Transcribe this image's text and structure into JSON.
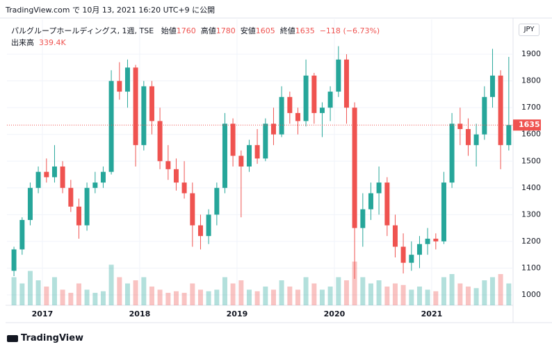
{
  "top_caption": "TradingView.com で 10月 13, 2021 16:20 UTC+9 に公開",
  "footer": "TradingView",
  "currency": "JPY",
  "chart_data": {
    "type": "candlestick",
    "title": "パルグループホールディングス, 1週, TSE",
    "open_label": "始値",
    "open_value": 1760,
    "high_label": "高値",
    "high_value": 1780,
    "low_label": "安値",
    "low_value": 1605,
    "close_label": "終値",
    "last_price": 1635,
    "change": "−118",
    "change_pct": "(−6.73%)",
    "volume_label": "出来高",
    "volume_value": "339.4K",
    "up_color": "#26a69a",
    "down_color": "#ef5350",
    "xlim": [
      2016.636,
      2021.836
    ],
    "xticks": [
      2017,
      2018,
      2019,
      2020,
      2021
    ],
    "ylim": [
      961,
      2030
    ],
    "yticks": [
      1000,
      1100,
      1200,
      1300,
      1400,
      1500,
      1600,
      1700,
      1800,
      1900
    ],
    "vlim": [
      0,
      2000
    ],
    "grid": true,
    "x": [
      2016.708,
      2016.792,
      2016.875,
      2016.958,
      2017.042,
      2017.125,
      2017.208,
      2017.292,
      2017.375,
      2017.458,
      2017.542,
      2017.625,
      2017.708,
      2017.792,
      2017.875,
      2017.958,
      2018.042,
      2018.125,
      2018.208,
      2018.292,
      2018.375,
      2018.458,
      2018.542,
      2018.625,
      2018.708,
      2018.792,
      2018.875,
      2018.958,
      2019.042,
      2019.125,
      2019.208,
      2019.292,
      2019.375,
      2019.458,
      2019.542,
      2019.625,
      2019.708,
      2019.792,
      2019.875,
      2019.958,
      2020.042,
      2020.125,
      2020.208,
      2020.292,
      2020.375,
      2020.458,
      2020.542,
      2020.625,
      2020.708,
      2020.792,
      2020.875,
      2020.958,
      2021.042,
      2021.125,
      2021.208,
      2021.292,
      2021.375,
      2021.458,
      2021.542,
      2021.625,
      2021.708,
      2021.792
    ],
    "open": [
      1090,
      1170,
      1280,
      1400,
      1460,
      1440,
      1480,
      1400,
      1330,
      1260,
      1400,
      1420,
      1460,
      1800,
      1760,
      1850,
      1560,
      1780,
      1650,
      1500,
      1470,
      1420,
      1380,
      1260,
      1220,
      1300,
      1400,
      1640,
      1520,
      1480,
      1560,
      1510,
      1640,
      1600,
      1740,
      1680,
      1650,
      1820,
      1680,
      1700,
      1760,
      1880,
      1700,
      1250,
      1320,
      1380,
      1420,
      1260,
      1180,
      1120,
      1150,
      1190,
      1210,
      1200,
      1420,
      1640,
      1620,
      1560,
      1600,
      1740,
      1820,
      1560
    ],
    "high": [
      1180,
      1290,
      1420,
      1480,
      1510,
      1560,
      1500,
      1430,
      1360,
      1420,
      1460,
      1480,
      1840,
      1870,
      1880,
      1860,
      1800,
      1800,
      1700,
      1560,
      1510,
      1500,
      1420,
      1300,
      1320,
      1420,
      1680,
      1660,
      1540,
      1580,
      1620,
      1660,
      1700,
      1780,
      1760,
      1700,
      1880,
      1830,
      1720,
      1780,
      1930,
      1900,
      1720,
      1380,
      1420,
      1480,
      1440,
      1300,
      1230,
      1200,
      1220,
      1250,
      1230,
      1460,
      1680,
      1700,
      1660,
      1640,
      1780,
      1920,
      1840,
      1890
    ],
    "low": [
      1070,
      1150,
      1260,
      1380,
      1420,
      1420,
      1380,
      1310,
      1210,
      1240,
      1380,
      1400,
      1450,
      1730,
      1700,
      1480,
      1540,
      1600,
      1470,
      1430,
      1390,
      1360,
      1180,
      1170,
      1190,
      1260,
      1380,
      1480,
      1290,
      1460,
      1490,
      1500,
      1560,
      1590,
      1640,
      1600,
      1630,
      1640,
      1590,
      1650,
      1740,
      1640,
      1060,
      1180,
      1280,
      1300,
      1220,
      1140,
      1080,
      1090,
      1100,
      1150,
      1170,
      1190,
      1400,
      1560,
      1520,
      1480,
      1580,
      1700,
      1470,
      1540
    ],
    "close": [
      1170,
      1280,
      1400,
      1460,
      1440,
      1480,
      1400,
      1330,
      1260,
      1400,
      1420,
      1460,
      1800,
      1760,
      1850,
      1560,
      1780,
      1650,
      1500,
      1470,
      1420,
      1380,
      1260,
      1220,
      1300,
      1400,
      1640,
      1520,
      1480,
      1560,
      1510,
      1640,
      1600,
      1740,
      1680,
      1650,
      1820,
      1680,
      1700,
      1760,
      1880,
      1700,
      1250,
      1320,
      1380,
      1420,
      1260,
      1180,
      1120,
      1150,
      1190,
      1210,
      1200,
      1420,
      1640,
      1620,
      1560,
      1600,
      1740,
      1820,
      1560,
      1635
    ],
    "volume": [
      900,
      700,
      1100,
      800,
      600,
      900,
      500,
      400,
      700,
      500,
      400,
      450,
      1300,
      900,
      700,
      800,
      900,
      600,
      500,
      400,
      450,
      400,
      700,
      500,
      450,
      500,
      900,
      700,
      800,
      500,
      450,
      600,
      500,
      800,
      600,
      500,
      900,
      700,
      500,
      600,
      900,
      800,
      1400,
      900,
      700,
      800,
      600,
      700,
      650,
      500,
      600,
      500,
      450,
      900,
      1000,
      700,
      600,
      550,
      800,
      900,
      1000,
      700
    ]
  }
}
